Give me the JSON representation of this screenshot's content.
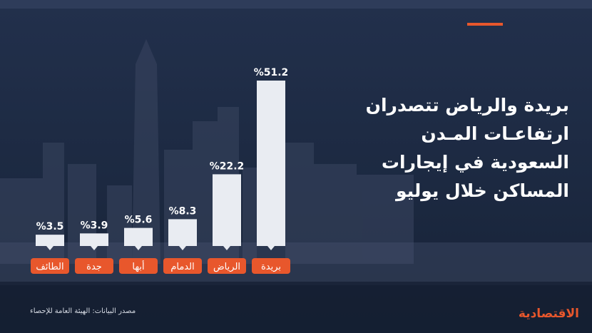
{
  "headline": {
    "line1": "بريدة والرياض تتصدران",
    "line2": "ارتفاعـات المـدن",
    "line3": "السعودية في إيجارات",
    "line4": "المساكن خلال يوليو"
  },
  "source": "مصدر البيانات: الهيئة العامة للإحصاء",
  "brand": "الاقتصادية",
  "colors": {
    "accent": "#e8572c",
    "bar": "#e9ecf2",
    "background": "#1e2b44"
  },
  "chart_data": {
    "type": "bar",
    "categories": [
      "الطائف",
      "جدة",
      "أبها",
      "الدمام",
      "الرياض",
      "بريدة"
    ],
    "values": [
      3.5,
      3.9,
      5.6,
      8.3,
      22.2,
      51.2
    ],
    "value_labels": [
      "%3.5",
      "%3.9",
      "%5.6",
      "%8.3",
      "%22.2",
      "%51.2"
    ],
    "unit": "%",
    "ylim": [
      0,
      51.2
    ]
  }
}
